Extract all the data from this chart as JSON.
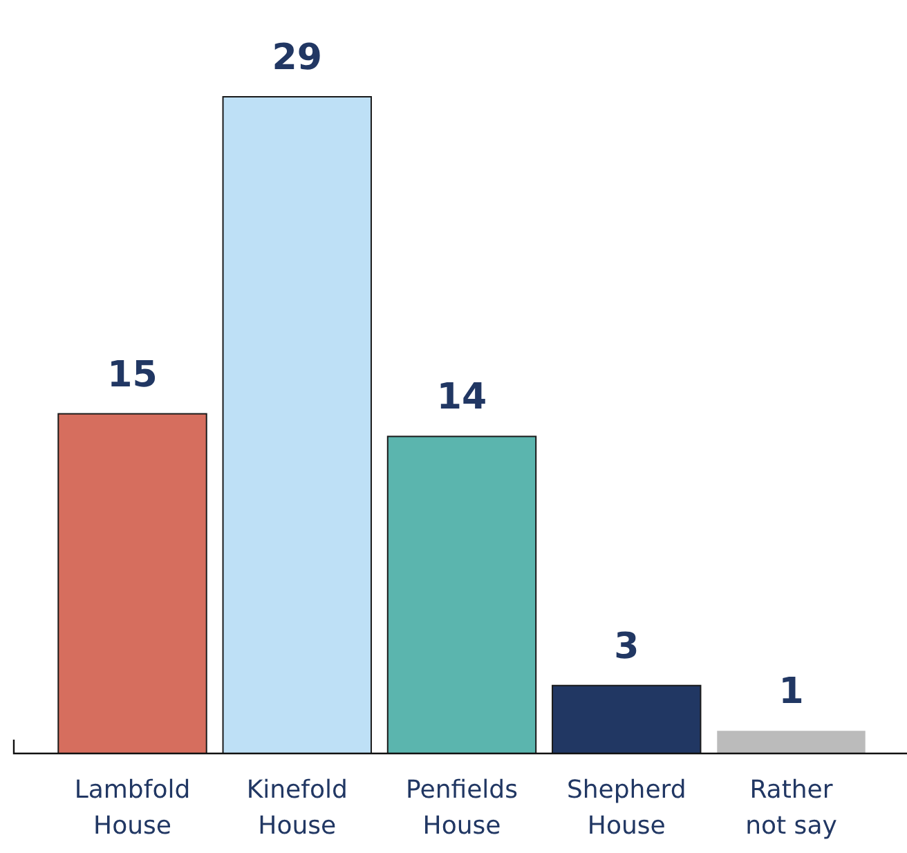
{
  "chart_data": {
    "type": "bar",
    "categories": [
      "Lambfold House",
      "Kinefold House",
      "Penfields House",
      "Shepherd House",
      "Rather not say"
    ],
    "values": [
      15,
      29,
      14,
      3,
      1
    ],
    "colors": [
      "#d66e5e",
      "#bee0f6",
      "#5bb5ae",
      "#213763",
      "#bbbbbb"
    ],
    "data_labels": true
  }
}
